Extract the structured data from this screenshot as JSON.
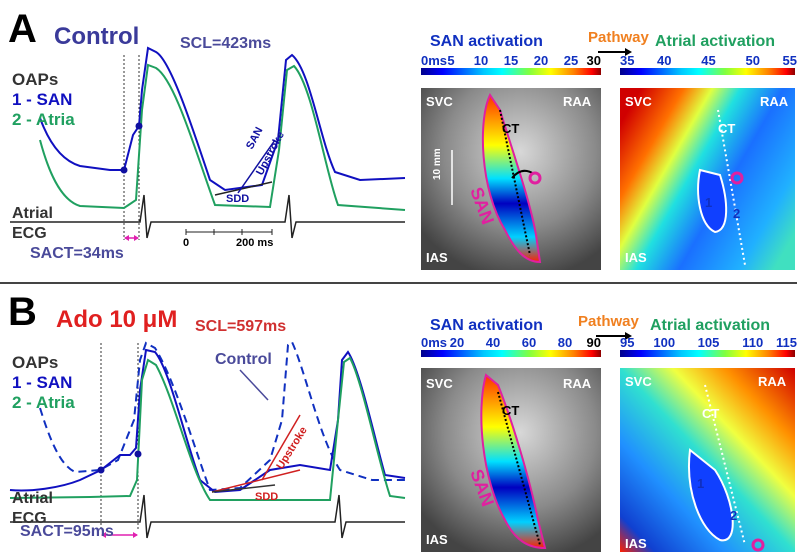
{
  "panels": [
    {
      "letter": "A",
      "condition": "Control",
      "scl": "SCL=423ms",
      "legend": {
        "title": "OAPs",
        "san": "1 - SAN",
        "atria": "2 - Atria"
      },
      "annotations": [
        "SAN",
        "Upstroke",
        "SDD"
      ],
      "ecg": [
        "Atrial",
        "ECG"
      ],
      "sact": "SACT=34ms",
      "scalebar": [
        "0",
        "200 ms"
      ],
      "san_map": {
        "title": "SAN activation",
        "ticks": [
          "0ms",
          "5",
          "10",
          "15",
          "20",
          "25",
          "30"
        ],
        "labels": [
          "SVC",
          "RAA",
          "IAS",
          "CT",
          "SAN",
          "10 mm"
        ]
      },
      "pathway": "Pathway",
      "atrial_map": {
        "title": "Atrial activation",
        "ticks": [
          "35",
          "40",
          "45",
          "50",
          "55"
        ],
        "labels": [
          "SVC",
          "RAA",
          "IAS",
          "CT",
          "1",
          "2"
        ]
      }
    },
    {
      "letter": "B",
      "condition": "Ado 10 μM",
      "scl": "SCL=597ms",
      "legend": {
        "title": "OAPs",
        "san": "1 - SAN",
        "atria": "2 - Atria"
      },
      "annotations": [
        "Control",
        "Upstroke",
        "SDD"
      ],
      "ecg": [
        "Atrial",
        "ECG"
      ],
      "sact": "SACT=95ms",
      "san_map": {
        "title": "SAN activation",
        "ticks": [
          "0ms",
          "20",
          "40",
          "60",
          "80",
          "90"
        ],
        "labels": [
          "SVC",
          "RAA",
          "IAS",
          "CT",
          "SAN"
        ]
      },
      "pathway": "Pathway",
      "atrial_map": {
        "title": "Atrial activation",
        "ticks": [
          "95",
          "100",
          "105",
          "110",
          "115"
        ],
        "labels": [
          "SVC",
          "RAA",
          "IAS",
          "CT",
          "1",
          "2"
        ]
      }
    }
  ]
}
